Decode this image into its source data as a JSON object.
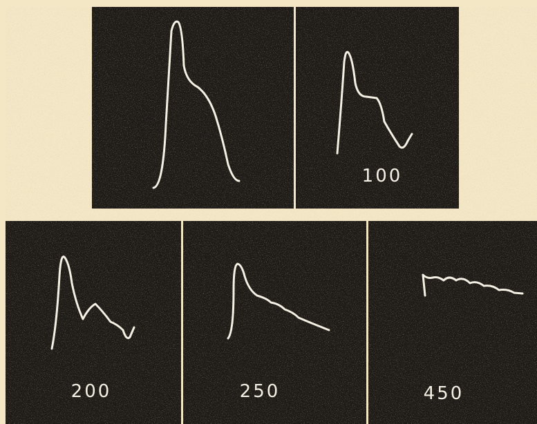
{
  "figure": {
    "labels": [
      "100",
      "200",
      "250",
      "450"
    ]
  }
}
